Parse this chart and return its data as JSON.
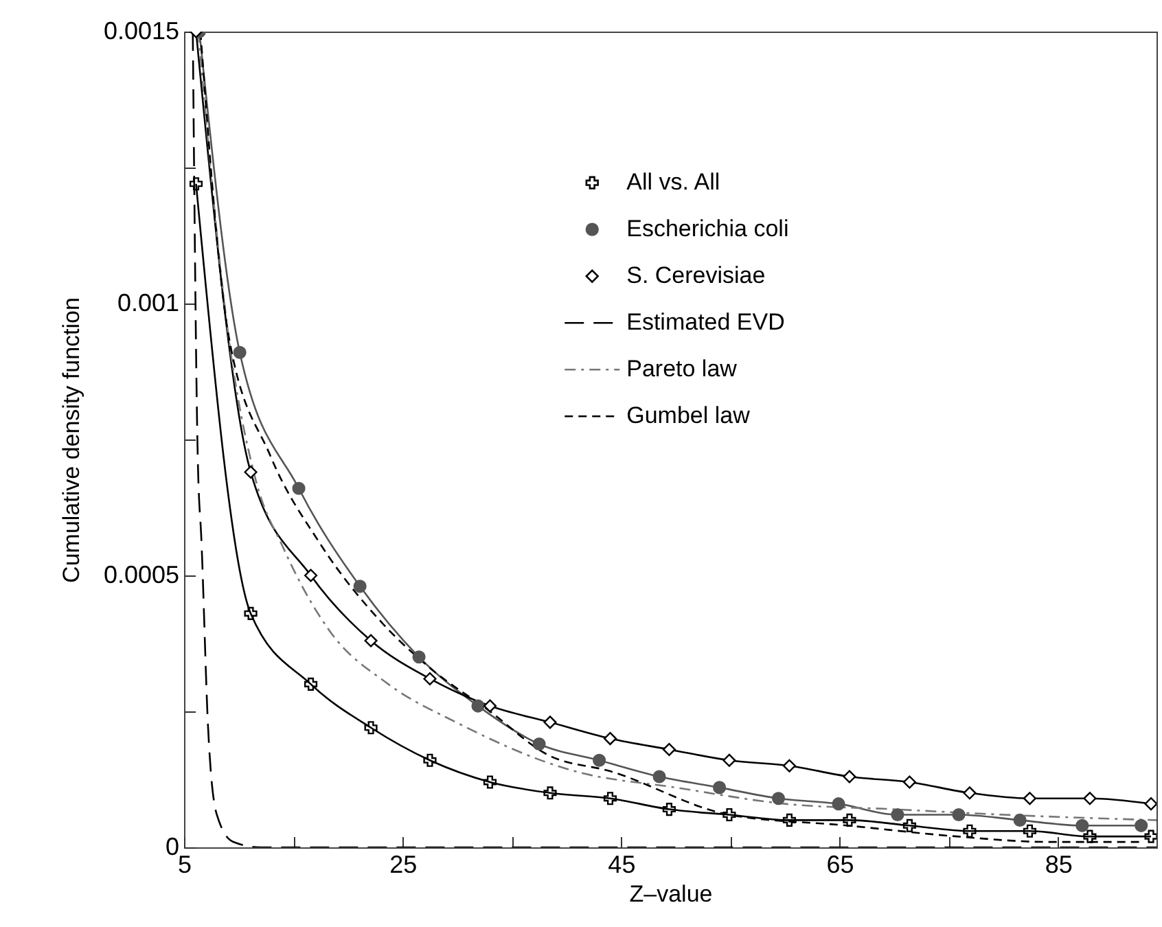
{
  "chart_data": {
    "type": "line",
    "xlabel": "Z–value",
    "ylabel": "Cumulative density function",
    "xlim": [
      5,
      94
    ],
    "ylim": [
      0,
      0.0015
    ],
    "xticks": [
      5,
      {
        "value": 15,
        "label": null
      },
      25,
      {
        "value": 35,
        "label": null
      },
      45,
      {
        "value": 55,
        "label": null
      },
      65,
      {
        "value": 75,
        "label": null
      },
      85
    ],
    "yticks": [
      0,
      {
        "value": 0.00025,
        "label": null
      },
      0.0005,
      {
        "value": 0.00075,
        "label": null
      },
      0.001,
      {
        "value": 0.00125,
        "label": null
      },
      0.0015
    ],
    "grid": false,
    "legend": "top right",
    "series": [
      {
        "name": "All vs. All",
        "color": "#000000",
        "marker": "cross",
        "line_style": "solid",
        "x": [
          6.1,
          11.1,
          16.6,
          22.1,
          27.5,
          33,
          38.5,
          44,
          49.4,
          54.9,
          60.4,
          65.9,
          71.4,
          76.9,
          82.4,
          87.9,
          93.5
        ],
        "values": [
          0.00122,
          0.00043,
          0.0003,
          0.00022,
          0.00016,
          0.00012,
          0.0001,
          9e-05,
          7e-05,
          6e-05,
          5e-05,
          5e-05,
          4e-05,
          3e-05,
          3e-05,
          2e-05,
          2e-05
        ]
      },
      {
        "name": "Escherichia coli",
        "color": "#555555",
        "marker": "circle",
        "line_style": "solid",
        "x": [
          6.4,
          10.1,
          15.5,
          21.1,
          26.5,
          31.9,
          37.5,
          43,
          48.5,
          54,
          59.4,
          64.9,
          70.3,
          75.9,
          81.5,
          87.2,
          92.6
        ],
        "values": [
          0.0015,
          0.00091,
          0.00066,
          0.00048,
          0.00035,
          0.00026,
          0.00019,
          0.00016,
          0.00013,
          0.00011,
          9e-05,
          8e-05,
          6e-05,
          6e-05,
          5e-05,
          4e-05,
          4e-05
        ]
      },
      {
        "name": "S. Cerevisiae",
        "color": "#000000",
        "marker": "diamond",
        "line_style": "solid",
        "x": [
          6.1,
          11.1,
          16.6,
          22.1,
          27.5,
          33,
          38.5,
          44,
          49.4,
          54.9,
          60.4,
          65.9,
          71.4,
          76.9,
          82.4,
          87.9,
          93.5
        ],
        "values": [
          0.0015,
          0.00069,
          0.0005,
          0.00038,
          0.00031,
          0.00026,
          0.00023,
          0.0002,
          0.00018,
          0.00016,
          0.00015,
          0.00013,
          0.00012,
          0.0001,
          9e-05,
          9e-05,
          8e-05
        ]
      },
      {
        "name": "Estimated EVD",
        "color": "#000000",
        "marker": "none",
        "line_style": "longdash",
        "x": [
          5.8,
          6.25,
          6.6,
          7.2,
          8,
          9.5,
          12,
          94
        ],
        "values": [
          0.0015,
          0.00072,
          0.00056,
          0.00022,
          6e-05,
          1e-05,
          0,
          0
        ]
      },
      {
        "name": "Pareto law",
        "color": "#777777",
        "marker": "none",
        "line_style": "dashdot",
        "x": [
          6.3,
          9,
          11.5,
          14.1,
          18.25,
          23.7,
          29.9,
          40.75,
          50,
          60,
          70,
          80,
          94
        ],
        "values": [
          0.0015,
          0.00095,
          0.00068,
          0.00055,
          0.0004,
          0.0003,
          0.00023,
          0.00014,
          0.00011,
          8e-05,
          7e-05,
          6e-05,
          5e-05
        ]
      },
      {
        "name": "Gumbel law",
        "color": "#000000",
        "marker": "none",
        "line_style": "dashed",
        "x": [
          6.5,
          9,
          12.9,
          17.4,
          23.25,
          27.5,
          33,
          38.3,
          44,
          54.9,
          65.75,
          75.75,
          84,
          92.4
        ],
        "values": [
          0.0015,
          0.00095,
          0.00072,
          0.00056,
          0.00041,
          0.00033,
          0.00025,
          0.00017,
          0.00014,
          6e-05,
          4e-05,
          2e-05,
          1e-05,
          1e-05
        ]
      }
    ]
  }
}
